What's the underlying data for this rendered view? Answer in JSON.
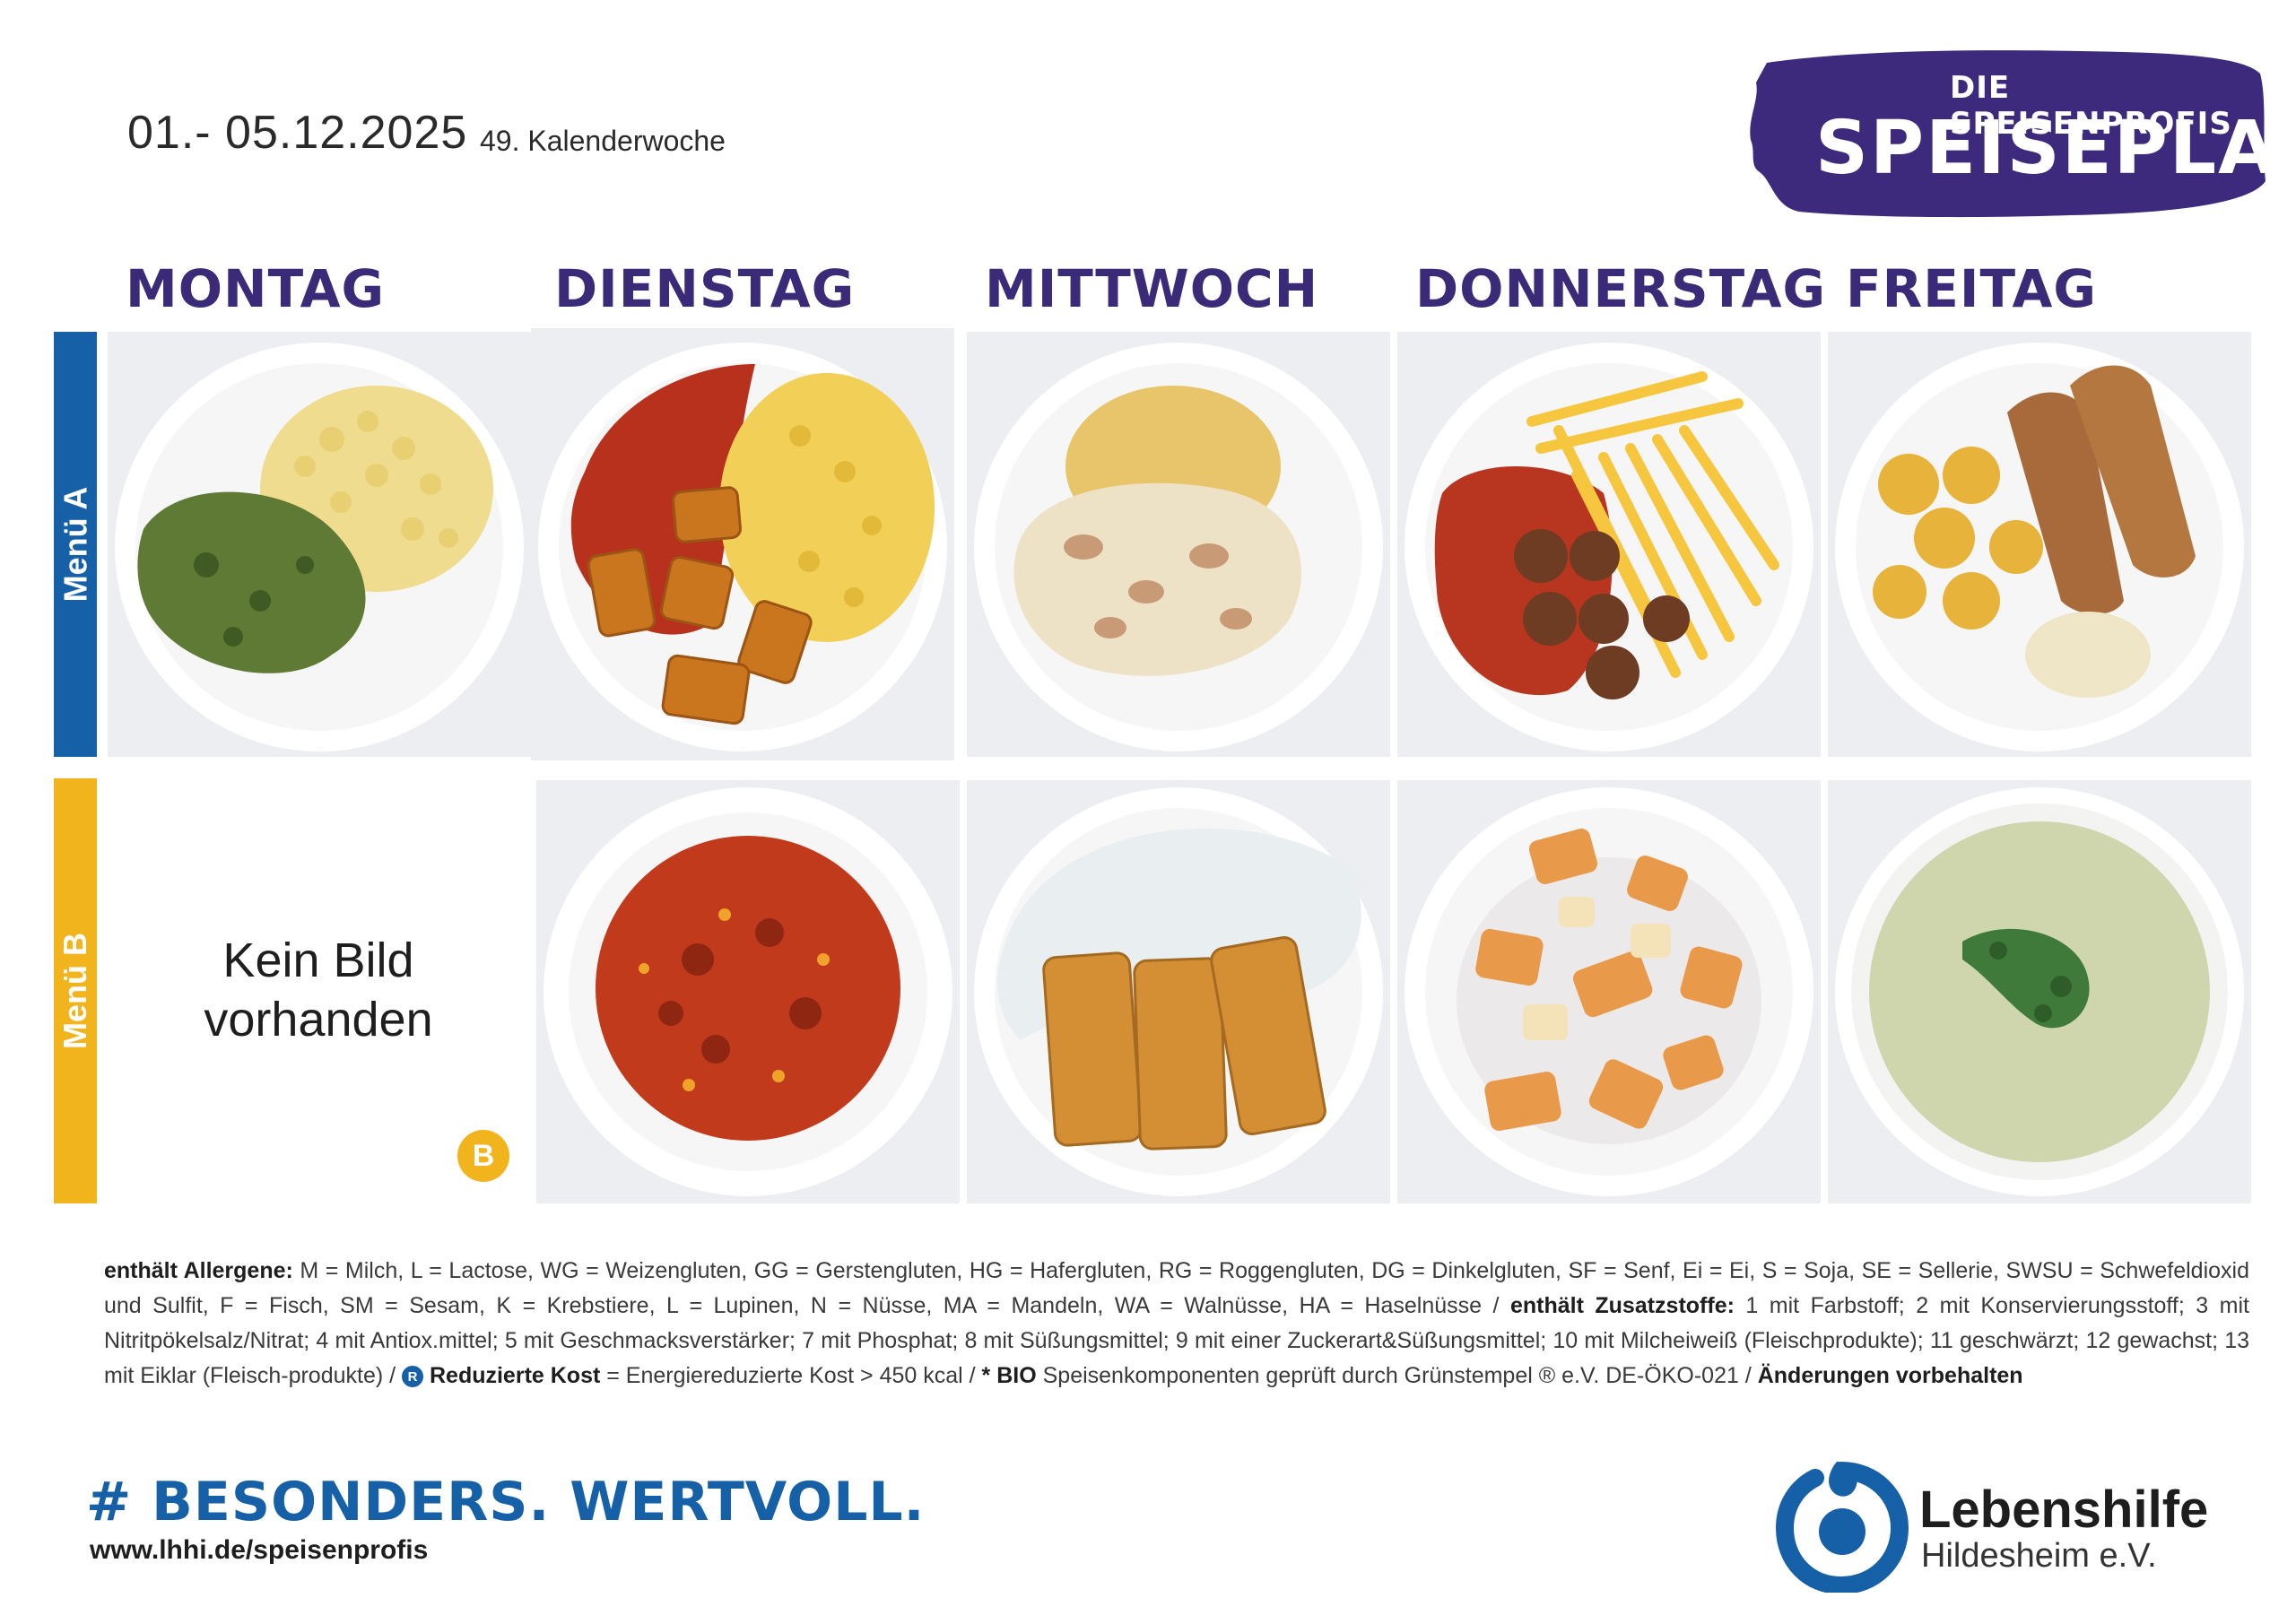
{
  "header": {
    "date_range": "01.- 05.12.2025",
    "calendar_week": "49. Kalenderwoche"
  },
  "brand": {
    "top_line": "DIE SPEISENPROFIS",
    "title": "SPEISEPLAN",
    "color": "#3d2a7c"
  },
  "days": [
    "MONTAG",
    "DIENSTAG",
    "MITTWOCH",
    "DONNERSTAG",
    "FREITAG"
  ],
  "menus": {
    "a": {
      "label": "Menü A",
      "color": "#1560a6"
    },
    "b": {
      "label": "Menü B",
      "color": "#f1b41c"
    }
  },
  "no_image": {
    "line1": "Kein Bild",
    "line2": "vorhanden",
    "badge": "B"
  },
  "allergens": {
    "label_allergens": "enthält Allergene:",
    "text_allergens": " M = Milch, L = Lactose, WG = Weizengluten, GG = Gerstengluten, HG = Hafergluten, RG = Roggengluten, DG = Dinkelgluten, SF = Senf, Ei = Ei, S = Soja, SE = Sellerie, SWSU = Schwefeldioxid und Sulfit, F = Fisch, SM = Sesam, K = Krebstiere, L = Lupinen, N = Nüsse, MA = Mandeln, WA = Walnüsse, HA =  Haselnüsse / ",
    "label_additives": "enthält Zusatzstoffe:",
    "text_additives": " 1 mit Farbstoff; 2 mit Konservierungsstoff; 3 mit Nitritpökelsalz/Nitrat; 4 mit Antiox.mittel; 5 mit Geschmacksverstärker; 7 mit Phosphat; 8 mit Süßungsmittel; 9 mit einer Zuckerart&Süßungsmittel; 10 mit Milcheiweiß (Fleischprodukte); 11 geschwärzt; 12 gewachst; 13 mit Eiklar (Fleisch-produkte) / ",
    "rk_icon": "R",
    "label_reduced": "Reduzierte Kost",
    "text_reduced": " = Energiereduzierte Kost > 450 kcal / ",
    "label_bio": "* BIO",
    "text_bio": " Speisenkomponenten geprüft durch Grünstempel ® e.V. DE-ÖKO-021 / ",
    "label_changes": "Änderungen vorbehalten"
  },
  "footer": {
    "hashtag": "# BESONDERS. WERTVOLL.",
    "url": "www.lhhi.de/speisenprofis",
    "org_name": "Lebenshilfe",
    "org_sub": "Hildesheim e.V."
  },
  "icons": {
    "logo": "lebenshilfe-logo-icon",
    "reduced": "reduced-diet-icon"
  }
}
